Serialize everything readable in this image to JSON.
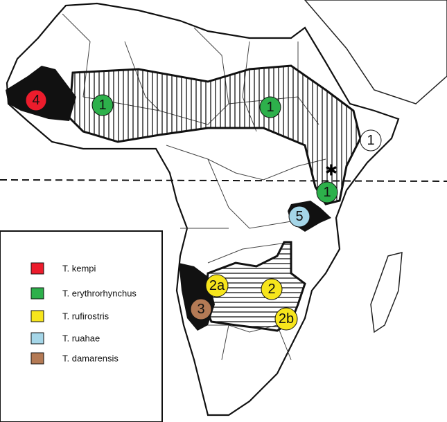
{
  "legend": [
    {
      "label": "T. kempi",
      "color": "#ec1c2c"
    },
    {
      "label": "T. erythrorhynchus",
      "color": "#2db04b"
    },
    {
      "label": "T. rufirostris",
      "color": "#f7e51c"
    },
    {
      "label": "T. ruahae",
      "color": "#a5d6e8"
    },
    {
      "label": "T. damarensis",
      "color": "#b47a55"
    }
  ],
  "markers": [
    {
      "label": "4",
      "color": "#ec1c2c"
    },
    {
      "label": "1",
      "color": "#2db04b"
    },
    {
      "label": "1",
      "color": "#2db04b"
    },
    {
      "label": "1",
      "color": "#2db04b"
    },
    {
      "label": "1",
      "color": "#ffffff"
    },
    {
      "label": "5",
      "color": "#a5d6e8"
    },
    {
      "label": "2a",
      "color": "#f7e51c"
    },
    {
      "label": "2",
      "color": "#f7e51c"
    },
    {
      "label": "2b",
      "color": "#f7e51c"
    },
    {
      "label": "3",
      "color": "#b47a55"
    }
  ]
}
